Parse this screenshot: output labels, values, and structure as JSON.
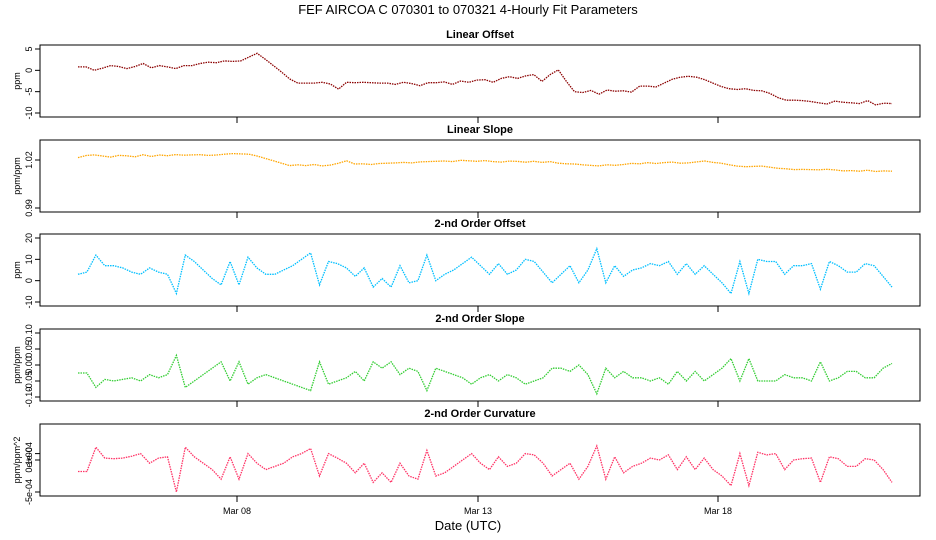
{
  "title": "FEF   AIRCOA C   070301 to 070321   4-Hourly Fit Parameters",
  "xlabel": "Date (UTC)",
  "x_ticks": [
    "Mar 08",
    "Mar 13",
    "Mar 18"
  ],
  "chart_data": [
    {
      "type": "line",
      "title": "Linear Offset",
      "ylabel": "ppm",
      "ylim": [
        -10,
        5
      ],
      "yticks": [
        "-10",
        "-5",
        "0",
        "5"
      ],
      "color": "#8b0000",
      "values": [
        0.8,
        0.8,
        0,
        0.5,
        1.1,
        0.9,
        0.4,
        0.9,
        1.6,
        0.6,
        1.1,
        0.8,
        0.4,
        1.1,
        1.1,
        1.6,
        1.9,
        1.8,
        2.2,
        2.1,
        2.2,
        3.1,
        4.0,
        2.6,
        1.1,
        -0.4,
        -2.0,
        -3.0,
        -3.0,
        -3.0,
        -2.8,
        -3.2,
        -4.4,
        -2.8,
        -2.9,
        -2.8,
        -2.9,
        -3.0,
        -3.0,
        -3.3,
        -2.8,
        -3.1,
        -3.6,
        -2.9,
        -2.9,
        -2.7,
        -3.3,
        -2.5,
        -2.8,
        -2.3,
        -2.2,
        -2.8,
        -1.9,
        -1.5,
        -1.9,
        -1.3,
        -1.0,
        -2.6,
        -1.0,
        0.1,
        -2.6,
        -5.0,
        -5.2,
        -4.7,
        -5.6,
        -4.6,
        -4.9,
        -4.8,
        -5.1,
        -3.7,
        -3.7,
        -3.9,
        -3.0,
        -2.1,
        -1.6,
        -1.4,
        -1.6,
        -2.2,
        -3.0,
        -3.8,
        -4.3,
        -4.5,
        -4.3,
        -4.7,
        -4.8,
        -5.4,
        -6.4,
        -7.0,
        -7.0,
        -7.1,
        -7.3,
        -7.6,
        -7.9,
        -7.2,
        -7.5,
        -7.6,
        -7.8,
        -7.1,
        -8.1,
        -7.7,
        -7.8
      ]
    },
    {
      "type": "line",
      "title": "Linear Slope",
      "ylabel": "ppm/ppm",
      "ylim": [
        0.99,
        1.03
      ],
      "yticks": [
        "0.99",
        "1.02"
      ],
      "color": "#ffa500",
      "values": [
        1.0215,
        1.0228,
        1.0232,
        1.0225,
        1.0218,
        1.0229,
        1.0226,
        1.022,
        1.0233,
        1.0222,
        1.0231,
        1.0227,
        1.0234,
        1.023,
        1.0232,
        1.0233,
        1.0229,
        1.0231,
        1.0236,
        1.024,
        1.0238,
        1.0236,
        1.0225,
        1.021,
        1.0195,
        1.018,
        1.0165,
        1.017,
        1.0165,
        1.0172,
        1.0163,
        1.0168,
        1.018,
        1.0195,
        1.0175,
        1.0176,
        1.0172,
        1.0178,
        1.018,
        1.0182,
        1.0185,
        1.0182,
        1.0188,
        1.019,
        1.0192,
        1.0194,
        1.019,
        1.0198,
        1.0195,
        1.0192,
        1.0196,
        1.019,
        1.0187,
        1.0193,
        1.0191,
        1.0186,
        1.0192,
        1.0185,
        1.019,
        1.018,
        1.0176,
        1.0175,
        1.017,
        1.0166,
        1.0163,
        1.017,
        1.0167,
        1.0172,
        1.0179,
        1.0176,
        1.0184,
        1.0178,
        1.0184,
        1.0187,
        1.018,
        1.0182,
        1.0188,
        1.0194,
        1.0185,
        1.018,
        1.017,
        1.0162,
        1.0158,
        1.016,
        1.0162,
        1.0155,
        1.0148,
        1.0145,
        1.014,
        1.0141,
        1.014,
        1.0139,
        1.0142,
        1.0138,
        1.0132,
        1.0134,
        1.013,
        1.0136,
        1.0128,
        1.0132,
        1.013
      ]
    },
    {
      "type": "line",
      "title": "2-nd Order Offset",
      "ylabel": "ppm",
      "ylim": [
        -10,
        20
      ],
      "yticks": [
        "-10",
        "0",
        "10",
        "20"
      ],
      "color": "#00bfff",
      "values": [
        3,
        4,
        12,
        7,
        7,
        6,
        4,
        3,
        6,
        4,
        3,
        -6,
        12,
        9,
        5,
        1,
        -2,
        9,
        -2,
        11,
        6,
        3,
        3,
        5,
        7,
        10,
        13,
        -2,
        9,
        8,
        6,
        2,
        6,
        -3,
        1,
        -3,
        7,
        -1,
        0,
        12,
        0,
        3,
        5,
        8,
        11,
        7,
        3,
        8,
        3,
        5,
        10,
        9,
        4,
        -1,
        3,
        7,
        -1,
        5,
        15,
        -1,
        7,
        2,
        5,
        6,
        8,
        7,
        9,
        3,
        8,
        3,
        7,
        3,
        -1,
        -6,
        9,
        -6,
        10,
        9,
        9,
        3,
        7,
        7,
        8,
        -4,
        9,
        7,
        4,
        4,
        8,
        7,
        2,
        -3
      ]
    },
    {
      "type": "line",
      "title": "2-nd Order Slope",
      "ylabel": "ppm/ppm",
      "ylim": [
        -0.1,
        0.1
      ],
      "yticks": [
        "-0.10",
        "-0.05",
        "0.00",
        "0.05",
        "0.10"
      ],
      "color": "#32cd32",
      "values": [
        -0.025,
        -0.025,
        -0.07,
        -0.045,
        -0.05,
        -0.045,
        -0.04,
        -0.05,
        -0.03,
        -0.04,
        -0.03,
        0.03,
        -0.07,
        -0.05,
        -0.03,
        -0.01,
        0.01,
        -0.05,
        0.01,
        -0.06,
        -0.04,
        -0.03,
        -0.04,
        -0.05,
        -0.06,
        -0.07,
        -0.08,
        0.01,
        -0.06,
        -0.05,
        -0.04,
        -0.02,
        -0.05,
        0.01,
        -0.01,
        0.01,
        -0.03,
        -0.01,
        -0.02,
        -0.08,
        -0.01,
        -0.02,
        -0.03,
        -0.04,
        -0.06,
        -0.04,
        -0.03,
        -0.05,
        -0.03,
        -0.04,
        -0.06,
        -0.05,
        -0.04,
        -0.01,
        -0.01,
        -0.02,
        0.0,
        -0.03,
        -0.09,
        -0.01,
        -0.04,
        -0.02,
        -0.04,
        -0.04,
        -0.05,
        -0.04,
        -0.06,
        -0.02,
        -0.05,
        -0.02,
        -0.05,
        -0.03,
        -0.01,
        0.02,
        -0.05,
        0.02,
        -0.05,
        -0.05,
        -0.05,
        -0.03,
        -0.04,
        -0.04,
        -0.05,
        0.01,
        -0.05,
        -0.04,
        -0.02,
        -0.02,
        -0.04,
        -0.04,
        -0.01,
        0.005
      ]
    },
    {
      "type": "line",
      "title": "2-nd Order Curvature",
      "ylabel": "ppm/ppm^2",
      "ylim": [
        -0.0005,
        0.0005
      ],
      "yticks": [
        "-5e-04",
        "0e+00",
        "1e-04"
      ],
      "color": "#ff3366",
      "values": [
        -0.00018,
        -0.00018,
        0.0002,
        3e-05,
        2e-05,
        3e-05,
        6e-05,
        0.0001,
        -5e-05,
        3e-05,
        5e-05,
        -0.00055,
        0.0002,
        5e-05,
        -5e-05,
        -0.00015,
        -0.0003,
        5e-05,
        -0.0003,
        0.0001,
        -5e-05,
        -0.00015,
        -0.0001,
        -5e-05,
        5e-05,
        0.0001,
        0.00018,
        -0.00025,
        0.0001,
        3e-05,
        -5e-05,
        -0.0002,
        -5e-05,
        -0.00035,
        -0.0002,
        -0.00035,
        -5e-05,
        -0.00025,
        -0.0003,
        0.00015,
        -0.00025,
        -0.0002,
        -0.0001,
        0.0,
        0.0001,
        -5e-05,
        -0.00015,
        5e-05,
        -0.0001,
        -5e-05,
        0.0001,
        8e-05,
        -5e-05,
        -0.00025,
        -0.00015,
        -5e-05,
        -0.0003,
        -0.0001,
        0.00022,
        -0.0003,
        5e-05,
        -0.0002,
        -0.0001,
        -5e-05,
        3e-05,
        0.0,
        8e-05,
        -0.00015,
        5e-05,
        -0.00015,
        3e-05,
        -0.00015,
        -0.00025,
        -0.0004,
        0.0001,
        -0.0004,
        0.00012,
        8e-05,
        0.0001,
        -0.00015,
        0.0,
        2e-05,
        3e-05,
        -0.00035,
        5e-05,
        2e-05,
        -0.0001,
        -0.0001,
        2e-05,
        0.0,
        -0.00015,
        -0.00035
      ]
    }
  ]
}
